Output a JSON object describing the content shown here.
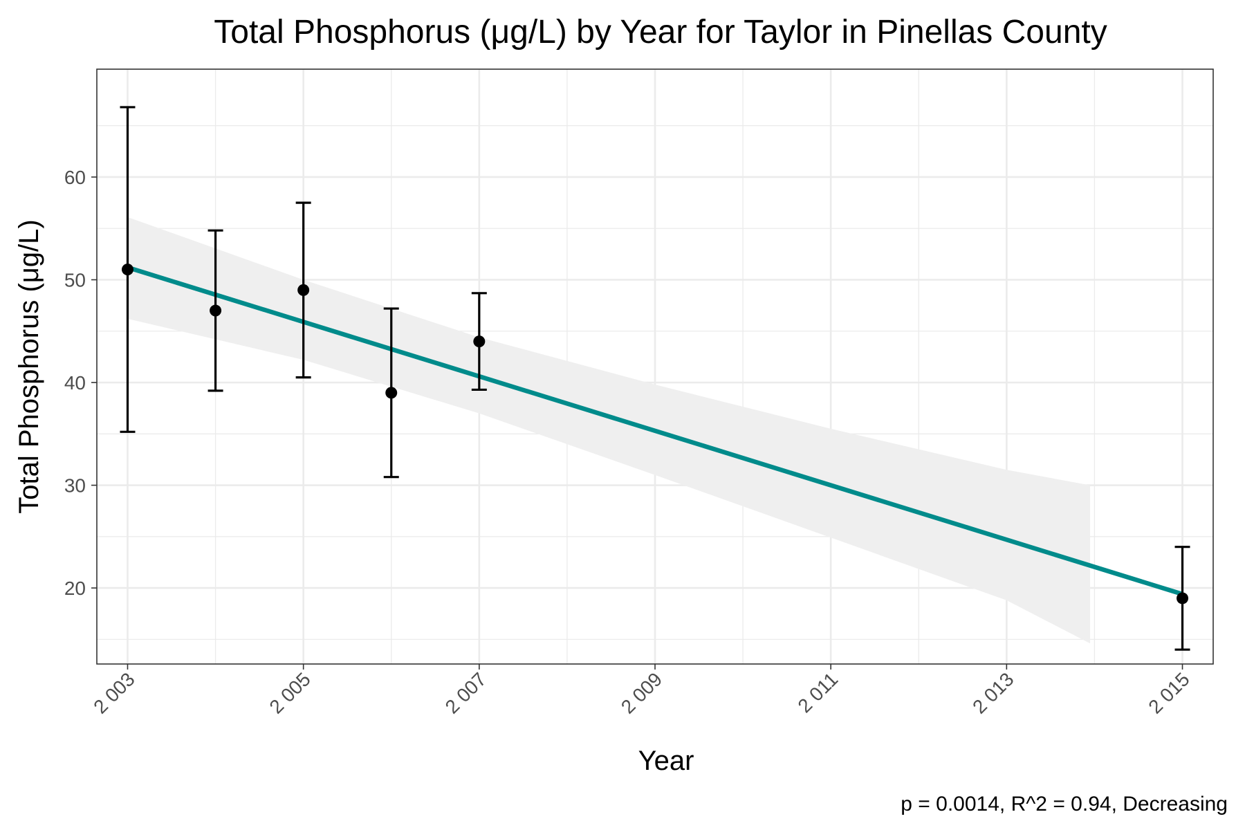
{
  "chart_data": {
    "type": "scatter",
    "title": "Total Phosphorus (μg/L) by Year for Taylor in Pinellas County",
    "xlabel": "Year",
    "ylabel": "Total Phosphorus (μg/L)",
    "caption": "p = 0.0014, R^2 = 0.94, Decreasing",
    "x_ticks": [
      2003,
      2005,
      2007,
      2009,
      2011,
      2013,
      2015
    ],
    "x_tick_labels": [
      "2 003",
      "2 005",
      "2 007",
      "2 009",
      "2 011",
      "2 013",
      "2 015"
    ],
    "y_ticks": [
      20,
      30,
      40,
      50,
      60
    ],
    "y_tick_labels": [
      "20",
      "30",
      "40",
      "50",
      "60"
    ],
    "xlim": [
      2002.65,
      2015.35
    ],
    "ylim": [
      12.6,
      70.5
    ],
    "grid": true,
    "points": [
      {
        "x": 2003,
        "y": 51,
        "lower": 35.2,
        "upper": 66.8
      },
      {
        "x": 2004,
        "y": 47,
        "lower": 39.2,
        "upper": 54.8
      },
      {
        "x": 2005,
        "y": 49,
        "lower": 40.5,
        "upper": 57.5
      },
      {
        "x": 2006,
        "y": 39,
        "lower": 30.8,
        "upper": 47.2
      },
      {
        "x": 2007,
        "y": 44,
        "lower": 39.3,
        "upper": 48.7
      },
      {
        "x": 2015,
        "y": 19,
        "lower": 14.0,
        "upper": 24.0
      }
    ],
    "trend_line": {
      "x": [
        2003,
        2015
      ],
      "y": [
        51.2,
        19.4
      ],
      "color": "#008B8B"
    },
    "confidence_band": [
      {
        "x": 2003,
        "lower": 46.2,
        "upper": 56.1
      },
      {
        "x": 2005,
        "lower": 42.2,
        "upper": 50.0
      },
      {
        "x": 2007,
        "lower": 37.0,
        "upper": 44.4
      },
      {
        "x": 2009,
        "lower": 31.0,
        "upper": 39.8
      },
      {
        "x": 2011,
        "lower": 24.9,
        "upper": 35.5
      },
      {
        "x": 2013,
        "lower": 18.8,
        "upper": 31.5
      },
      {
        "x": 2013.95,
        "lower": 14.6,
        "upper": 30.0
      }
    ],
    "colors": {
      "points": "#000000",
      "trend": "#008B8B",
      "band": "#EFEFEF"
    }
  }
}
